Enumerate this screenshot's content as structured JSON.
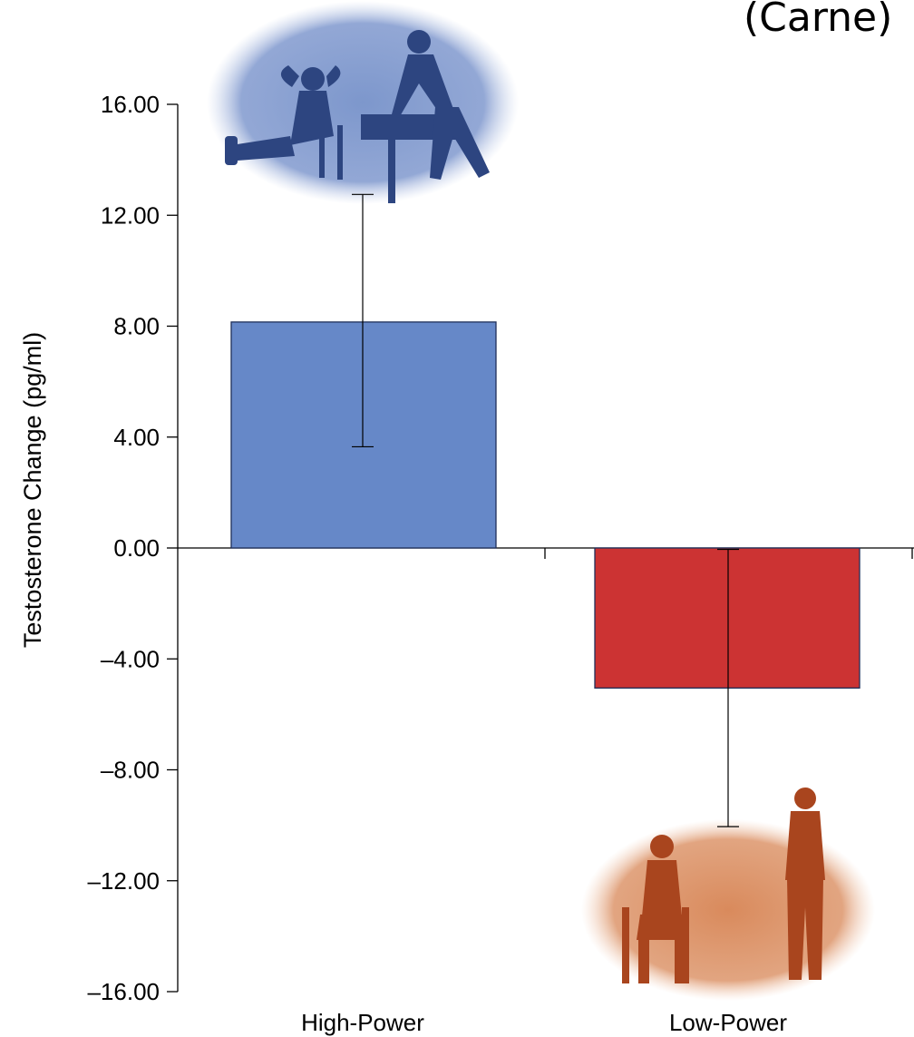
{
  "header": {
    "cropped_title": "(Carne)"
  },
  "chart_data": {
    "type": "bar",
    "title": "",
    "xlabel": "",
    "ylabel": "Testosterone Change (pg/ml)",
    "categories": [
      "High-Power",
      "Low-Power"
    ],
    "values": [
      8.15,
      -5.05
    ],
    "error_upper": [
      12.75,
      -0.05
    ],
    "error_lower": [
      3.65,
      -10.05
    ],
    "ylim": [
      -16,
      16
    ],
    "yticks": [
      16,
      12,
      8,
      4,
      0,
      -4,
      -8,
      -12,
      -16
    ],
    "ytick_labels": [
      "16.00",
      "12.00",
      "8.00",
      "4.00",
      "0.00",
      "–4.00",
      "–8.00",
      "–12.00",
      "–16.00"
    ],
    "grid": false,
    "legend": "none",
    "colors": {
      "high_power": "#6688c8",
      "low_power": "#cc3333",
      "high_power_photo": "#7d97cc",
      "low_power_photo": "#d98a5c"
    },
    "annotations": [
      {
        "category": "High-Power",
        "kind": "photo",
        "icon": "high-power-poses-photo-icon"
      },
      {
        "category": "Low-Power",
        "kind": "photo",
        "icon": "low-power-poses-photo-icon"
      }
    ]
  }
}
